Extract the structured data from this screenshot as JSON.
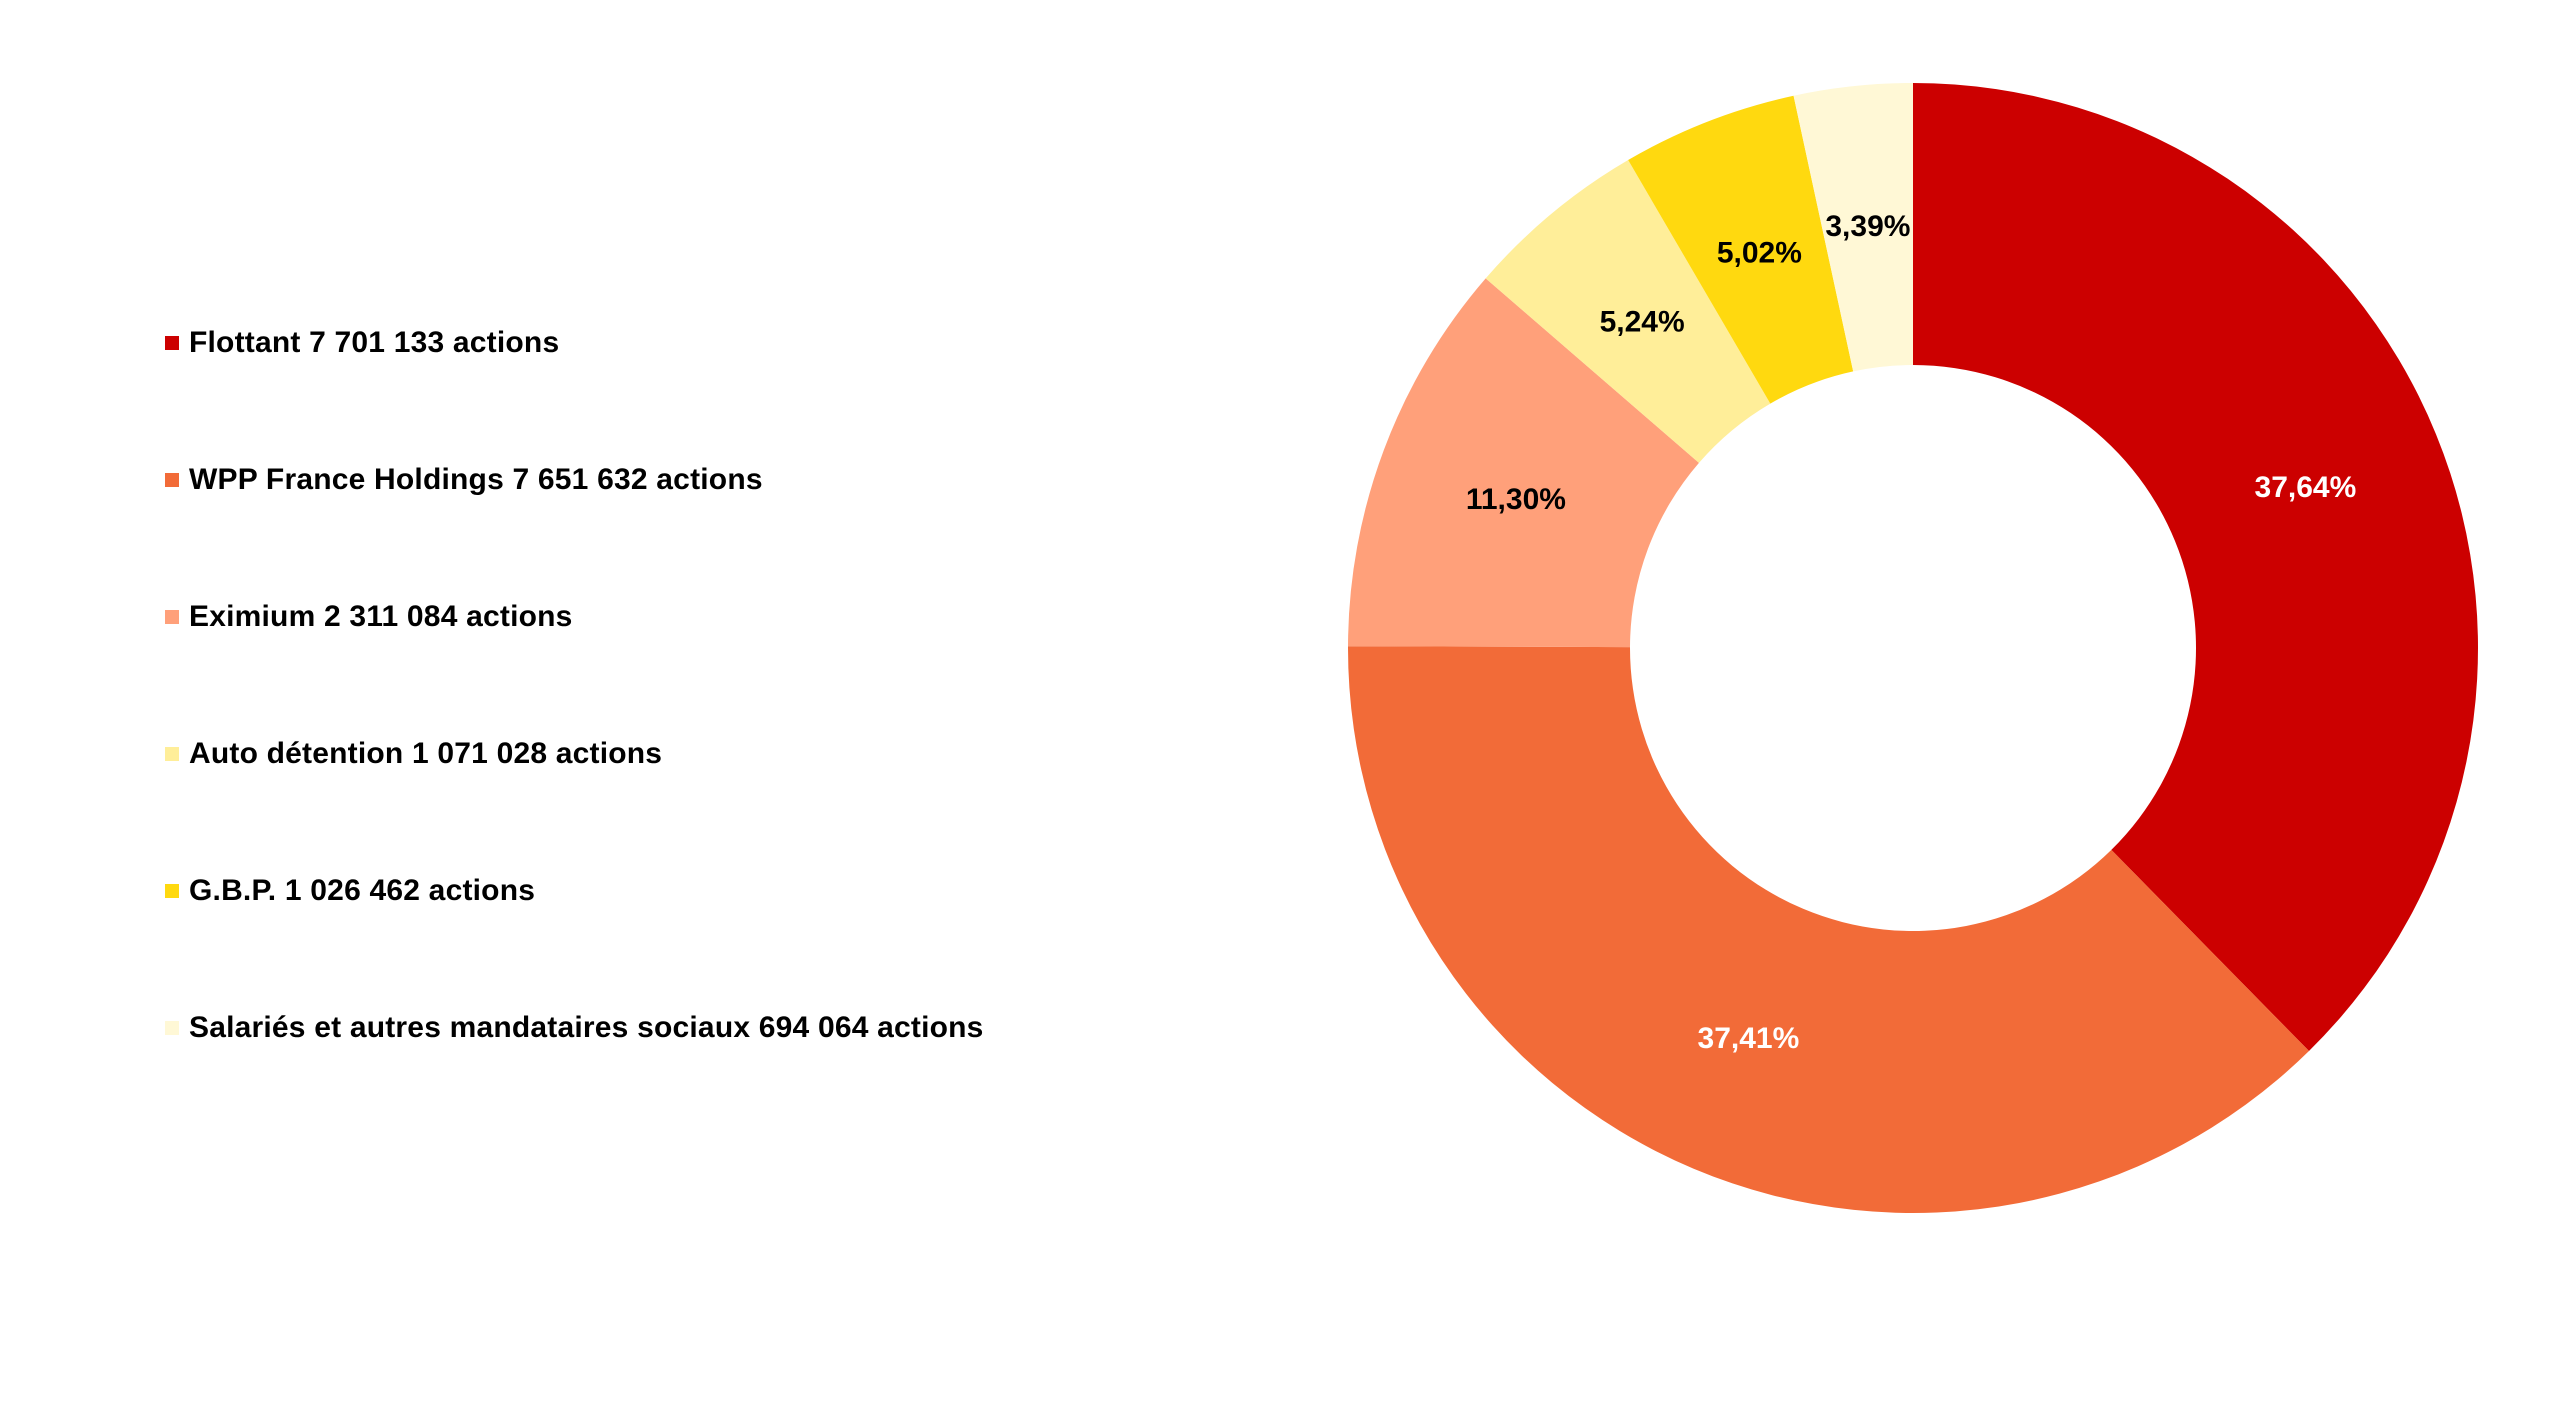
{
  "chart_data": {
    "type": "pie",
    "variant": "donut",
    "legend_position": "left",
    "slices": [
      {
        "legend": "Flottant 7 701 133 actions",
        "label": "37,64%",
        "value": 37.64,
        "color": "#CC0000",
        "label_color": "#FFFFFF"
      },
      {
        "legend": "WPP France Holdings 7 651 632 actions",
        "label": "37,41%",
        "value": 37.41,
        "color": "#F26B38",
        "label_color": "#FFFFFF"
      },
      {
        "legend": "Eximium 2 311 084 actions",
        "label": "11,30%",
        "value": 11.3,
        "color": "#FFA07A",
        "label_color": "#000000"
      },
      {
        "legend": "Auto détention 1 071 028 actions",
        "label": "5,24%",
        "value": 5.24,
        "color": "#FFEE99",
        "label_color": "#000000"
      },
      {
        "legend": "G.B.P. 1 026 462 actions",
        "label": "5,02%",
        "value": 5.02,
        "color": "#FFD90F",
        "label_color": "#000000"
      },
      {
        "legend": "Salariés et autres mandataires sociaux 694 064 actions",
        "label": "3,39%",
        "value": 3.39,
        "color": "#FFF8D6",
        "label_color": "#000000"
      }
    ]
  }
}
